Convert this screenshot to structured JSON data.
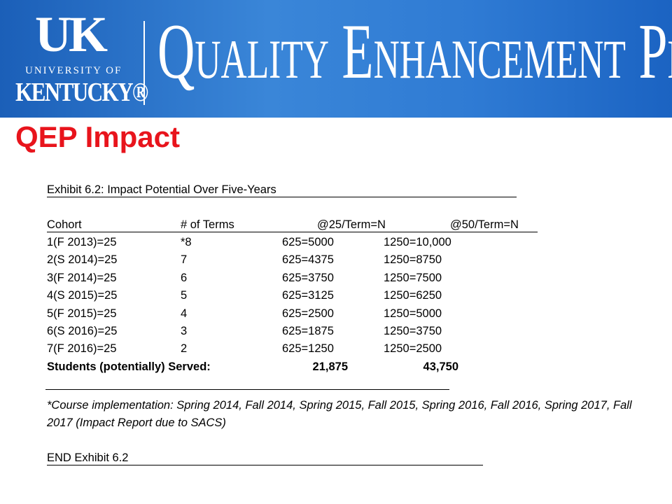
{
  "header": {
    "logo_mark": "UK",
    "logo_line1": "UNIVERSITY OF",
    "logo_line2": "KENTUCKY®",
    "banner": "Quality Enhancement Plan"
  },
  "title": "QEP Impact",
  "exhibit": {
    "title": "Exhibit 6.2:  Impact Potential Over Five-Years",
    "table": {
      "columns": [
        "Cohort",
        "# of Terms",
        "@25/Term=N",
        "@50/Term=N"
      ],
      "rows": [
        [
          "1(F 2013)=25",
          "*8",
          "625=5000",
          "1250=10,000"
        ],
        [
          "2(S 2014)=25",
          "7",
          "625=4375",
          "1250=8750"
        ],
        [
          "3(F 2014)=25",
          "6",
          "625=3750",
          "1250=7500"
        ],
        [
          "4(S 2015)=25",
          "5",
          "625=3125",
          "1250=6250"
        ],
        [
          "5(F 2015)=25",
          "4",
          "625=2500",
          "1250=5000"
        ],
        [
          "6(S 2016)=25",
          "3",
          "625=1875",
          "1250=3750"
        ],
        [
          "7(F 2016)=25",
          "2",
          "625=1250",
          "1250=2500"
        ]
      ],
      "totals": [
        "Students (potentially) Served:",
        "21,875",
        "43,750"
      ]
    },
    "footnote": "*Course implementation: Spring 2014, Fall 2014, Spring 2015, Fall 2015, Spring 2016, Fall 2016, Spring 2017, Fall 2017 (Impact Report due to SACS)",
    "end": "END Exhibit 6.2"
  }
}
